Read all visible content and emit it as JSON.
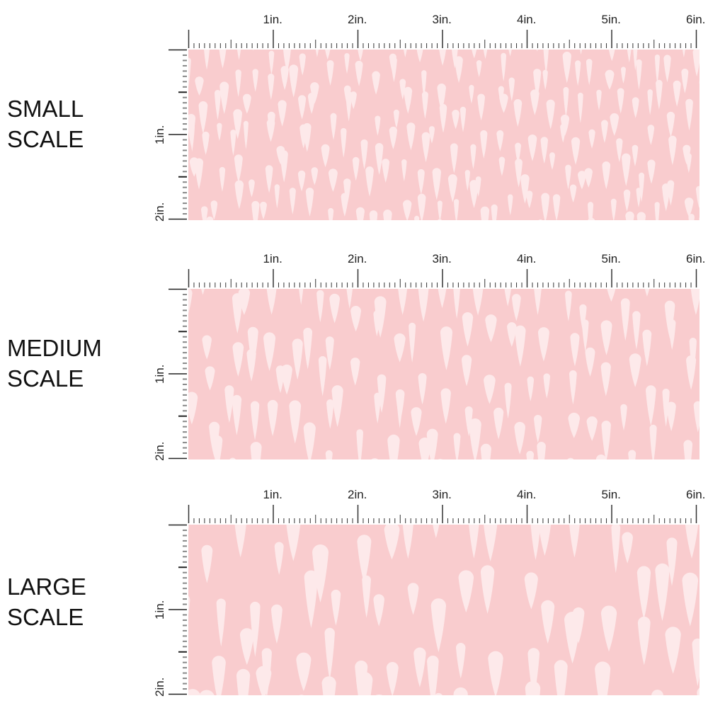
{
  "colors": {
    "background": "#f9ccce",
    "drop": "#fde9ea",
    "ruler": "#333333"
  },
  "panels": [
    {
      "label_line1": "SMALL",
      "label_line2": "SCALE",
      "drop_scale": 1.0
    },
    {
      "label_line1": "MEDIUM",
      "label_line2": "SCALE",
      "drop_scale": 1.35
    },
    {
      "label_line1": "LARGE",
      "label_line2": "SCALE",
      "drop_scale": 1.8
    }
  ],
  "ruler": {
    "top_labels": [
      "1in.",
      "2in.",
      "3in.",
      "4in.",
      "5in.",
      "6in."
    ],
    "side_labels": [
      "1in.",
      "2in."
    ]
  }
}
